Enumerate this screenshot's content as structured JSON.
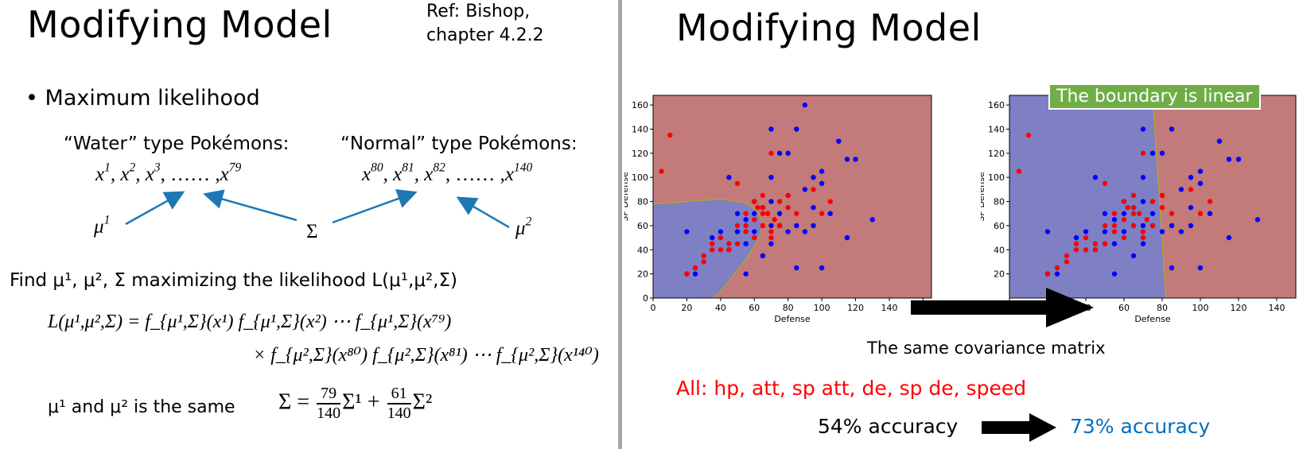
{
  "left": {
    "title": "Modifying Model",
    "ref_line1": "Ref: Bishop,",
    "ref_line2": "chapter 4.2.2",
    "bullet": "Maximum likelihood",
    "water_label": "“Water” type Pokémons:",
    "normal_label": "“Normal” type Pokémons:",
    "water_seq": {
      "a": "x",
      "s1": "1",
      "s2": "2",
      "s3": "3",
      "dots": ", …… ,",
      "s4": "79"
    },
    "normal_seq": {
      "a": "x",
      "s1": "80",
      "s2": "81",
      "s3": "82",
      "dots": ", …… ,",
      "s4": "140"
    },
    "mu1_label": "μ",
    "mu1_sup": "1",
    "mu2_label": "μ",
    "mu2_sup": "2",
    "sigma_label": "Σ",
    "find_text": "Find μ¹, μ², Σ maximizing the likelihood L(μ¹,μ²,Σ)",
    "likelihood_lhs": "L(μ¹,μ²,Σ) =",
    "likelihood_line1": "f_{μ¹,Σ}(x¹) f_{μ¹,Σ}(x²) ⋯ f_{μ¹,Σ}(x⁷⁹)",
    "likelihood_line2": "× f_{μ²,Σ}(x⁸⁰) f_{μ²,Σ}(x⁸¹) ⋯ f_{μ²,Σ}(x¹⁴⁰)",
    "same_text": "μ¹ and μ² is the same",
    "sigma_eq": {
      "lhs": "Σ =",
      "n1": "79",
      "d1": "140",
      "t1": "Σ¹ +",
      "n2": "61",
      "d2": "140",
      "t2": "Σ²"
    }
  },
  "right": {
    "title": "Modifying Model",
    "boundary_note": "The boundary is linear",
    "caption": "The same covariance matrix",
    "features": "All: hp, att, sp att, de, sp de, speed",
    "acc_before": "54% accuracy",
    "acc_after": "73% accuracy",
    "colors": {
      "features": "#ff0000",
      "acc_after": "#0070c0",
      "note_bg": "#70ad47",
      "region_red": "#c27a7a",
      "region_blue": "#7f7fc4"
    }
  },
  "chart_data": [
    {
      "type": "scatter",
      "title": "",
      "xlabel": "Defense",
      "ylabel": "SP Defense",
      "xlim": [
        0,
        165
      ],
      "ylim": [
        0,
        168
      ],
      "x_ticks": [
        0,
        20,
        40,
        60,
        80,
        100,
        120,
        140,
        160
      ],
      "y_ticks": [
        0,
        20,
        40,
        60,
        80,
        100,
        120,
        140,
        160
      ],
      "boundary": "quadratic (different covariance)",
      "series": [
        {
          "name": "Water",
          "color": "#0000ff",
          "x": [
            90,
            70,
            85,
            110,
            75,
            80,
            70,
            45,
            100,
            95,
            60,
            70,
            80,
            90,
            100,
            115,
            120,
            130,
            55,
            65,
            75,
            85,
            95,
            105,
            50,
            60,
            70,
            80,
            90,
            20,
            25,
            40,
            55,
            65,
            75,
            50,
            60,
            70,
            20,
            35,
            45,
            55,
            85,
            100,
            115,
            95
          ],
          "y": [
            160,
            140,
            140,
            130,
            120,
            120,
            100,
            100,
            105,
            100,
            80,
            80,
            85,
            90,
            95,
            115,
            115,
            65,
            65,
            75,
            60,
            60,
            60,
            70,
            55,
            70,
            60,
            55,
            55,
            55,
            20,
            55,
            45,
            35,
            70,
            70,
            55,
            45,
            20,
            50,
            40,
            20,
            25,
            25,
            50,
            75
          ]
        },
        {
          "name": "Normal",
          "color": "#ff0000",
          "x": [
            5,
            10,
            50,
            70,
            65,
            75,
            80,
            95,
            100,
            105,
            55,
            60,
            65,
            70,
            75,
            60,
            65,
            60,
            45,
            50,
            55,
            65,
            40,
            35,
            30,
            30,
            35,
            25,
            20,
            40,
            45,
            50,
            65,
            70,
            60,
            55,
            62,
            68,
            72,
            80,
            85
          ],
          "y": [
            105,
            135,
            95,
            120,
            85,
            80,
            75,
            90,
            70,
            80,
            70,
            65,
            60,
            55,
            60,
            80,
            75,
            50,
            40,
            45,
            55,
            60,
            50,
            45,
            35,
            30,
            40,
            25,
            20,
            40,
            45,
            60,
            70,
            50,
            65,
            60,
            75,
            70,
            65,
            85,
            70
          ]
        }
      ]
    },
    {
      "type": "scatter",
      "title": "",
      "xlabel": "Defense",
      "ylabel": "SP Defense",
      "xlim": [
        0,
        150
      ],
      "ylim": [
        0,
        168
      ],
      "x_ticks": [
        0,
        20,
        40,
        60,
        80,
        100,
        120,
        140
      ],
      "y_ticks": [
        20,
        40,
        60,
        80,
        100,
        120,
        140,
        160
      ],
      "boundary": "linear (same covariance)",
      "series": [
        {
          "name": "Water",
          "color": "#0000ff",
          "x": [
            90,
            70,
            85,
            110,
            75,
            80,
            70,
            45,
            100,
            95,
            60,
            70,
            80,
            90,
            100,
            115,
            120,
            130,
            55,
            65,
            75,
            85,
            95,
            105,
            50,
            60,
            70,
            80,
            90,
            20,
            25,
            40,
            55,
            65,
            75,
            50,
            60,
            70,
            20,
            35,
            45,
            55,
            85,
            100,
            115,
            95
          ],
          "y": [
            160,
            140,
            140,
            130,
            120,
            120,
            100,
            100,
            105,
            100,
            80,
            80,
            85,
            90,
            95,
            115,
            115,
            65,
            65,
            75,
            60,
            60,
            60,
            70,
            55,
            70,
            60,
            55,
            55,
            55,
            20,
            55,
            45,
            35,
            70,
            70,
            55,
            45,
            20,
            50,
            40,
            20,
            25,
            25,
            50,
            75
          ]
        },
        {
          "name": "Normal",
          "color": "#ff0000",
          "x": [
            5,
            10,
            50,
            70,
            65,
            75,
            80,
            95,
            100,
            105,
            55,
            60,
            65,
            70,
            75,
            60,
            65,
            60,
            45,
            50,
            55,
            65,
            40,
            35,
            30,
            30,
            35,
            25,
            20,
            40,
            45,
            50,
            65,
            70,
            60,
            55,
            62,
            68,
            72,
            80,
            85
          ],
          "y": [
            105,
            135,
            95,
            120,
            85,
            80,
            75,
            90,
            70,
            80,
            70,
            65,
            60,
            55,
            60,
            80,
            75,
            50,
            40,
            45,
            55,
            60,
            50,
            45,
            35,
            30,
            40,
            25,
            20,
            40,
            45,
            60,
            70,
            50,
            65,
            60,
            75,
            70,
            65,
            85,
            70
          ]
        }
      ]
    }
  ]
}
